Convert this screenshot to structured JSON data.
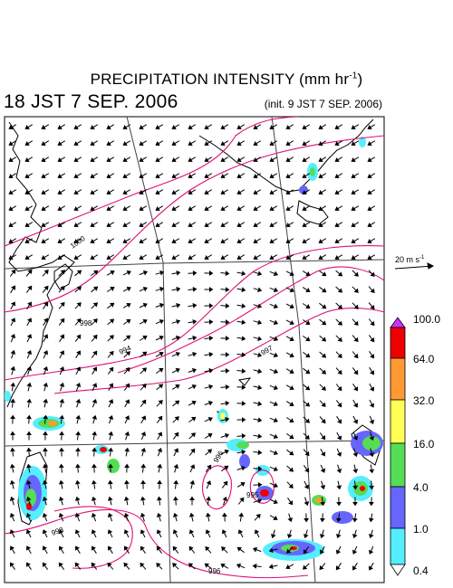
{
  "title": {
    "main": "PRECIPITATION INTENSITY (mm hr",
    "unit_exp": "-1",
    "close": ")"
  },
  "valid_time": "18 JST 7 SEP. 2006",
  "init_time": "(init. 9 JST 7 SEP. 2006)",
  "wind_scale": {
    "label": "20 m s",
    "exp": "-1"
  },
  "colorbar": {
    "levels": [
      "100.0",
      "64.0",
      "32.0",
      "16.0",
      "4.0",
      "1.0",
      "0.4"
    ],
    "colors": {
      "over": "#cc33ff",
      "64-100": "#ee0000",
      "32-64": "#ff9933",
      "16-32": "#ffff55",
      "4-16": "#55dd55",
      "1-4": "#6666ff",
      "0.4-1": "#55eeff"
    }
  },
  "isobars": [
    {
      "label": "1000"
    },
    {
      "label": "998"
    },
    {
      "label": "994"
    },
    {
      "label": "997"
    },
    {
      "label": "996"
    },
    {
      "label": "998"
    },
    {
      "label": "995"
    },
    {
      "label": "996"
    }
  ],
  "colors": {
    "isobar": "#dd1177",
    "coast": "#000000",
    "grid": "#333333"
  }
}
